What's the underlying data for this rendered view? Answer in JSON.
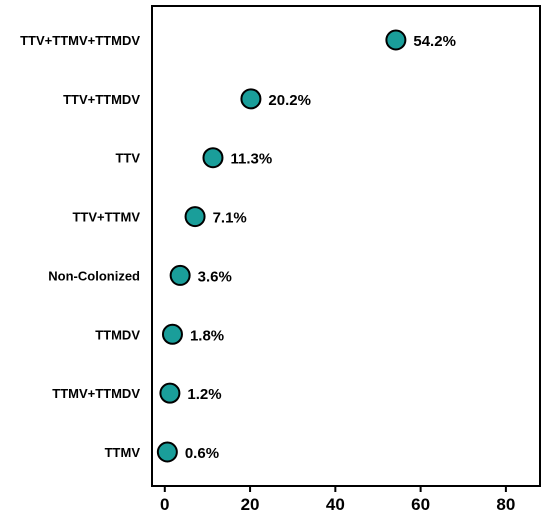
{
  "chart_data": {
    "type": "scatter",
    "categories": [
      "TTV+TTMV+TTMDV",
      "TTV+TTMDV",
      "TTV",
      "TTV+TTMV",
      "Non-Colonized",
      "TTMDV",
      "TTMV+TTMDV",
      "TTMV"
    ],
    "values": [
      54.2,
      20.2,
      11.3,
      7.1,
      3.6,
      1.8,
      1.2,
      0.6
    ],
    "value_labels": [
      "54.2%",
      "20.2%",
      "11.3%",
      "7.1%",
      "3.6%",
      "1.8%",
      "1.2%",
      "0.6%"
    ],
    "x_ticks": [
      "0",
      "20",
      "40",
      "60",
      "80"
    ],
    "xlim": [
      -3,
      88
    ],
    "title": "",
    "xlabel": "",
    "ylabel": "",
    "grid": false,
    "colors": {
      "marker_fill": "#1a9e9a",
      "marker_stroke": "#000000",
      "axis": "#000000",
      "text": "#000000"
    }
  }
}
